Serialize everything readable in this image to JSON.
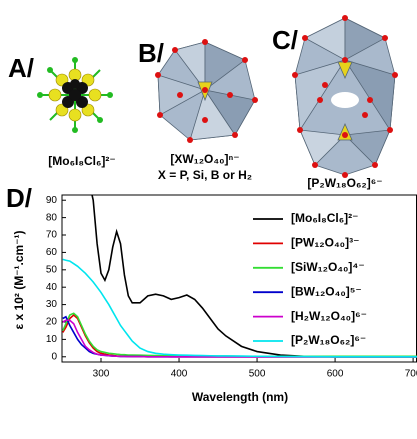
{
  "structures": [
    {
      "label": "A/",
      "formula_lines": [
        "[Mo₆I₈Cl₆]²⁻"
      ]
    },
    {
      "label": "B/",
      "formula_lines": [
        "[XW₁₂O₄₀]ⁿ⁻",
        "X = P, Si, B or H₂"
      ]
    },
    {
      "label": "C/",
      "formula_lines": [
        "[P₂W₁₈O₆₂]⁶⁻"
      ]
    }
  ],
  "chart_data": {
    "type": "line",
    "panel_label": "D/",
    "xlabel": "Wavelength (nm)",
    "ylabel": "ε x 10² (M⁻¹.cm⁻¹)",
    "x": [
      251,
      255,
      260,
      265,
      270,
      275,
      280,
      285,
      290,
      295,
      300,
      305,
      310,
      315,
      320,
      325,
      330,
      335,
      340,
      350,
      360,
      370,
      380,
      390,
      400,
      410,
      420,
      430,
      440,
      450,
      460,
      480,
      500,
      530,
      560,
      600,
      705
    ],
    "series": [
      {
        "name": "[Mo₆I₈Cl₆]²⁻",
        "color": "#000000",
        "values": [
          null,
          null,
          null,
          null,
          null,
          null,
          null,
          100,
          90,
          65,
          48,
          44,
          50,
          63,
          72,
          65,
          47,
          35,
          31,
          31,
          35,
          36,
          35,
          33,
          34,
          35.5,
          33,
          28,
          22,
          16,
          12,
          6,
          3,
          1,
          0.3,
          0,
          0
        ]
      },
      {
        "name": "[PW₁₂O₄₀]³⁻",
        "color": "#e00000",
        "values": [
          14,
          17,
          22,
          24,
          22,
          17,
          12,
          8,
          5,
          3,
          2,
          1.5,
          1,
          0.8,
          0.5,
          0.4,
          0.3,
          0.3,
          0.2,
          0.2,
          0.1,
          0.1,
          0.1,
          0,
          0,
          0,
          0,
          0,
          0,
          0,
          0,
          0,
          0,
          0,
          0,
          0,
          0
        ]
      },
      {
        "name": "[SiW₁₂O₄₀]⁴⁻",
        "color": "#33dd33",
        "values": [
          15,
          19,
          24,
          25,
          23,
          18,
          13,
          9,
          6,
          4,
          3,
          2.5,
          2,
          1.8,
          1.5,
          1.3,
          1.2,
          1,
          1,
          0.9,
          0.8,
          0.7,
          0.6,
          0.6,
          0.5,
          0.5,
          0.5,
          0.4,
          0.4,
          0.4,
          0.4,
          0.3,
          0.3,
          0.3,
          0.3,
          0.3,
          0.3
        ]
      },
      {
        "name": "[BW₁₂O₄₀]⁵⁻",
        "color": "#0000cc",
        "values": [
          22,
          23,
          18,
          14,
          10,
          7,
          5,
          3,
          2,
          1.5,
          1,
          0.8,
          0.6,
          0.4,
          0.3,
          0.2,
          0.2,
          0.1,
          0.1,
          0.1,
          0,
          0,
          0,
          0,
          0,
          0,
          0,
          0,
          0,
          0,
          0,
          0,
          0,
          0,
          0,
          0,
          0
        ]
      },
      {
        "name": "[H₂W₁₂O₄₀]⁶⁻",
        "color": "#cc00cc",
        "values": [
          20,
          21,
          21,
          19,
          14,
          10,
          6,
          4,
          2.5,
          1.5,
          1,
          0.8,
          0.6,
          0.4,
          0.3,
          0.2,
          0.2,
          0.1,
          0.1,
          0.1,
          0,
          0,
          0,
          0,
          0,
          0,
          0,
          0,
          0,
          0,
          0,
          0,
          0,
          0,
          0,
          0,
          0
        ]
      },
      {
        "name": "[P₂W₁₈O₆₂]⁶⁻",
        "color": "#00e5ee",
        "values": [
          56,
          55.5,
          55,
          53.5,
          52,
          50,
          48,
          45.5,
          43,
          40,
          37,
          33.5,
          30,
          26,
          22,
          18,
          15,
          12,
          9,
          5,
          3,
          2,
          1.5,
          1.2,
          1,
          0.9,
          0.8,
          0.7,
          0.6,
          0.5,
          0.5,
          0.4,
          0.3,
          0.2,
          0.1,
          0,
          0
        ]
      }
    ],
    "xlim": [
      250,
      705
    ],
    "ylim": [
      -3,
      93
    ],
    "xticks": [
      300,
      400,
      500,
      600,
      700
    ],
    "yticks": [
      0,
      10,
      20,
      30,
      40,
      50,
      60,
      70,
      80,
      90
    ],
    "legend": "upper-right"
  }
}
